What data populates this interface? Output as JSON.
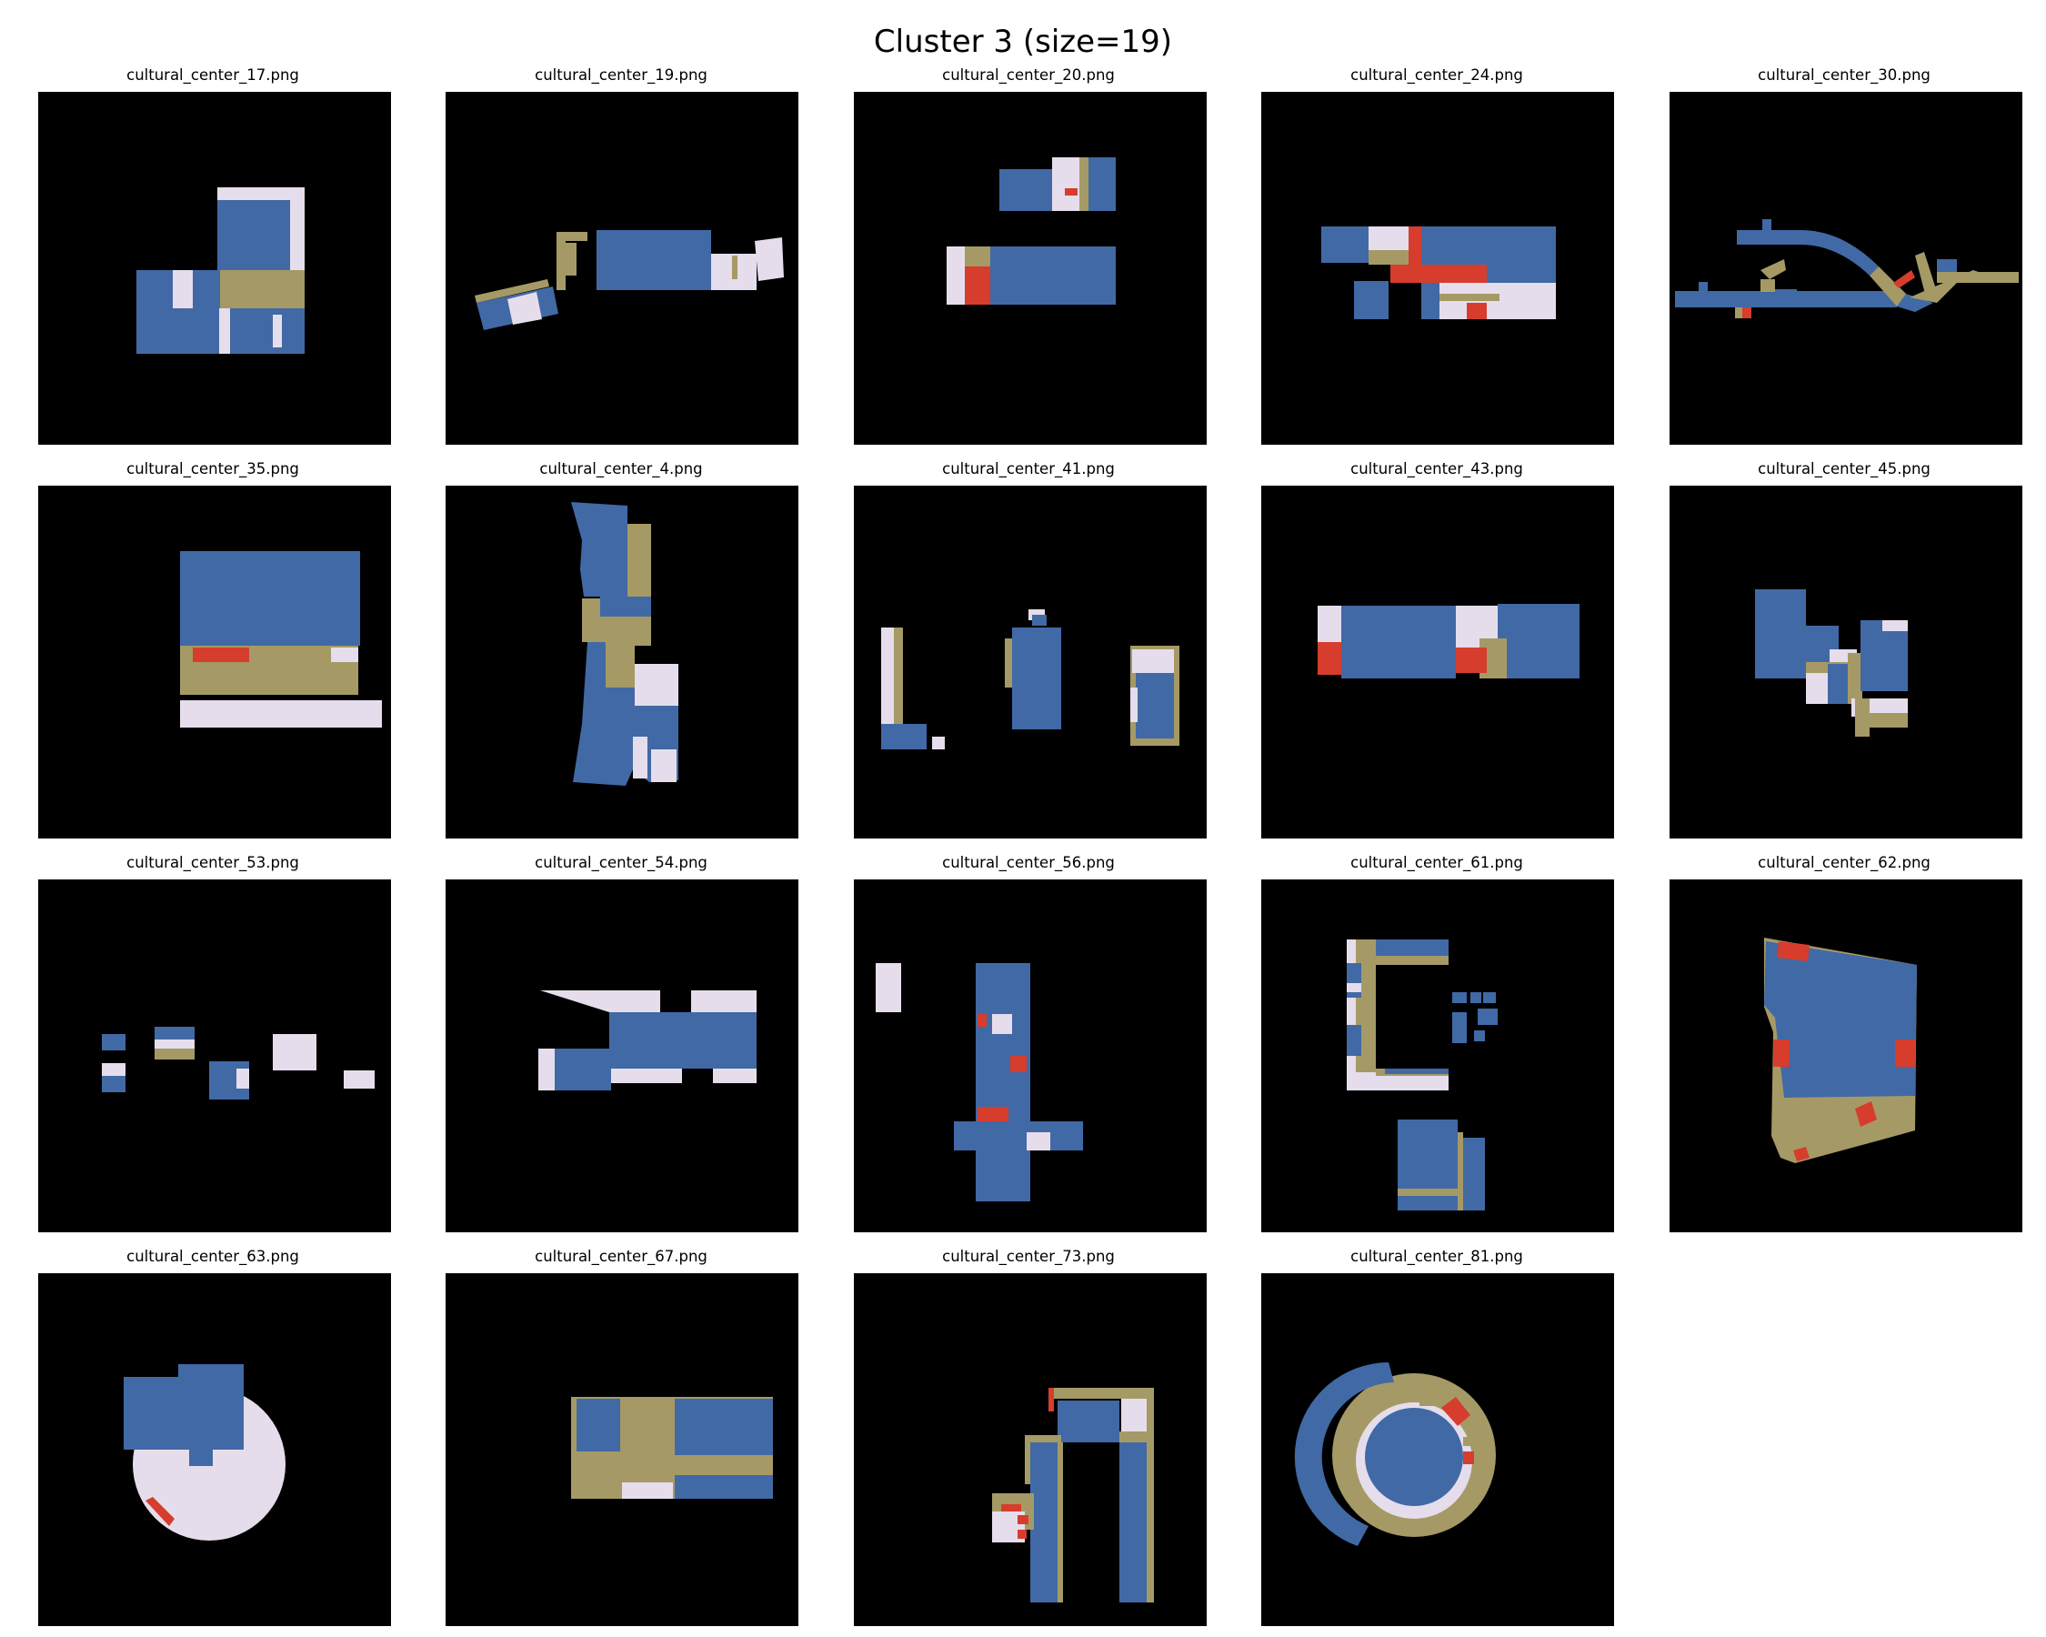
{
  "figure": {
    "title": "Cluster 3 (size=19)"
  },
  "palette": {
    "background": "#000000",
    "blue": "#4169A5",
    "lilac": "#E6DDEC",
    "olive": "#A59A65",
    "red": "#D63D2C"
  },
  "panels": [
    {
      "label": "cultural_center_17.png"
    },
    {
      "label": "cultural_center_19.png"
    },
    {
      "label": "cultural_center_20.png"
    },
    {
      "label": "cultural_center_24.png"
    },
    {
      "label": "cultural_center_30.png"
    },
    {
      "label": "cultural_center_35.png"
    },
    {
      "label": "cultural_center_4.png"
    },
    {
      "label": "cultural_center_41.png"
    },
    {
      "label": "cultural_center_43.png"
    },
    {
      "label": "cultural_center_45.png"
    },
    {
      "label": "cultural_center_53.png"
    },
    {
      "label": "cultural_center_54.png"
    },
    {
      "label": "cultural_center_56.png"
    },
    {
      "label": "cultural_center_61.png"
    },
    {
      "label": "cultural_center_62.png"
    },
    {
      "label": "cultural_center_63.png"
    },
    {
      "label": "cultural_center_67.png"
    },
    {
      "label": "cultural_center_73.png"
    },
    {
      "label": "cultural_center_81.png"
    }
  ]
}
